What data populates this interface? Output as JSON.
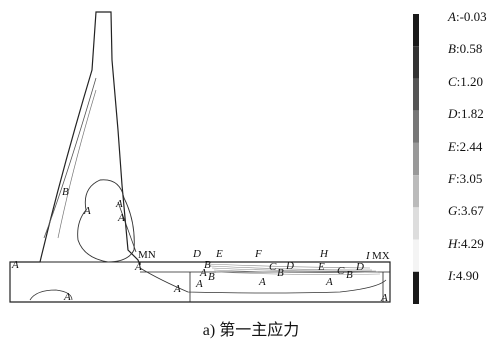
{
  "legend": [
    {
      "key": "A",
      "value": "-0.03",
      "color": "#1a1a1a"
    },
    {
      "key": "B",
      "value": "0.58",
      "color": "#333333"
    },
    {
      "key": "C",
      "value": "1.20",
      "color": "#555555"
    },
    {
      "key": "D",
      "value": "1.82",
      "color": "#777777"
    },
    {
      "key": "E",
      "value": "2.44",
      "color": "#999999"
    },
    {
      "key": "F",
      "value": "3.05",
      "color": "#bbbbbb"
    },
    {
      "key": "G",
      "value": "3.67",
      "color": "#dddddd"
    },
    {
      "key": "H",
      "value": "4.29",
      "color": "#f4f4f4"
    },
    {
      "key": "I",
      "value": "4.90",
      "color": "#1a1a1a"
    }
  ],
  "markers": {
    "min": "MN",
    "max": "MX"
  },
  "contour_labels": {
    "A": "A",
    "B": "B",
    "C": "C",
    "D": "D",
    "E": "E",
    "F": "F",
    "H": "H",
    "I": "I"
  },
  "caption": "a) 第一主应力"
}
